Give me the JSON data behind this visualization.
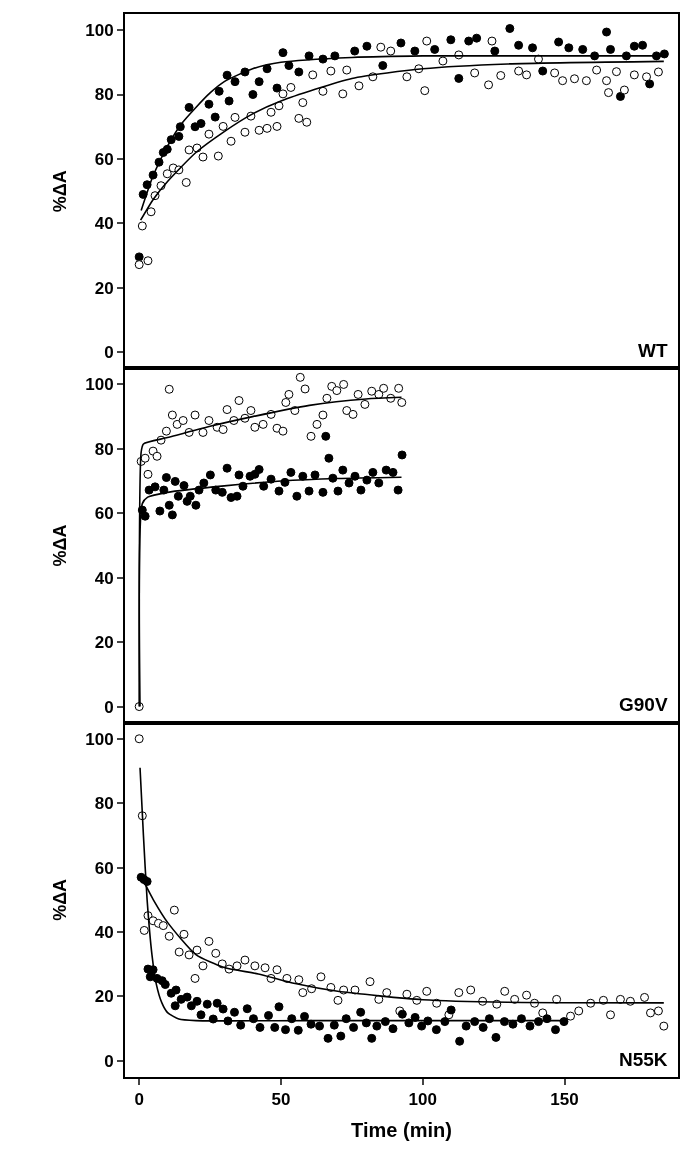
{
  "chart_data": [
    {
      "type": "scatter",
      "ylabel": "%ΔA",
      "annotations": [
        "WT"
      ],
      "xlim": [
        -5,
        190
      ],
      "xticks": [
        0,
        50,
        100,
        150
      ],
      "ylim": [
        -5,
        105
      ],
      "yticks": [
        0,
        20,
        40,
        60,
        80,
        100
      ],
      "tick_labels": "y",
      "grid": false,
      "marker": "circle",
      "series": [
        {
          "color": "#000000",
          "x": [
            0,
            1.4,
            2.8,
            4.9,
            7,
            8.5,
            9.9,
            11.3,
            14,
            14.5,
            17.6,
            19.7,
            21.8,
            24.6,
            26.8,
            28.2,
            31,
            31.7,
            33.8,
            37.3,
            40.1,
            42.3,
            45.1,
            48.6,
            50.7,
            52.8,
            56.3,
            59.9,
            64.8,
            69,
            76,
            80.3,
            85.9,
            92.3,
            97.2,
            104.2,
            109.9,
            112.7,
            116.2,
            119,
            125.4,
            130.7,
            133.8,
            138.7,
            142.3,
            147.9,
            151.5,
            156.4,
            160.6,
            164.8,
            166.2,
            169.7,
            171.8,
            174.6,
            177.5,
            180,
            182.4,
            185.2
          ],
          "values": [
            29.6,
            49,
            52,
            55,
            59,
            62,
            63,
            66,
            67,
            70,
            76,
            70,
            71,
            77,
            73,
            81,
            86,
            78,
            84,
            87,
            80,
            84,
            88,
            82,
            93,
            89,
            87,
            92,
            91,
            92,
            93.5,
            95,
            89,
            96,
            93.5,
            94,
            97,
            85,
            96.6,
            97.5,
            93.5,
            100.5,
            95.3,
            94.5,
            87.3,
            96.3,
            94.5,
            94,
            92,
            99.4,
            94,
            79.4,
            92,
            95,
            95.3,
            83.3,
            92,
            92.6
          ]
        },
        {
          "color": "#ffffff",
          "x": [
            0,
            1.1,
            3.1,
            4.2,
            5.6,
            7.7,
            9.9,
            12,
            14,
            16.6,
            17.6,
            20.4,
            22.5,
            24.6,
            27.9,
            29.6,
            32.4,
            33.8,
            37.3,
            39.4,
            42.3,
            45.1,
            46.5,
            48.6,
            49.3,
            50.7,
            53.5,
            56.3,
            57.7,
            59.1,
            61.2,
            64.8,
            67.6,
            71.8,
            73.2,
            77.5,
            82.4,
            85.2,
            88.7,
            94.4,
            98.6,
            100.7,
            101.4,
            107.1,
            112.7,
            118.3,
            123.2,
            124.4,
            127.5,
            133.8,
            136.6,
            140.8,
            146.5,
            149.3,
            153.5,
            157.7,
            161.3,
            164.8,
            165.5,
            168.3,
            171.1,
            174.6,
            178.9,
            183.1
          ],
          "values": [
            27.2,
            39.2,
            28.4,
            43.6,
            48.6,
            51.7,
            55.4,
            57.2,
            56.6,
            52.7,
            62.8,
            63.4,
            60.6,
            67.7,
            60.9,
            70.1,
            65.5,
            72.9,
            68.3,
            73.3,
            68.9,
            69.5,
            74.5,
            70.1,
            76.5,
            80.2,
            82.2,
            72.6,
            77.5,
            71.4,
            86.1,
            81,
            87.3,
            80.2,
            87.6,
            82.7,
            85.5,
            94.7,
            93.5,
            85.5,
            88,
            81.2,
            96.6,
            90.4,
            92.3,
            86.7,
            83,
            96.6,
            85.9,
            87.3,
            86.1,
            91,
            86.7,
            84.3,
            84.9,
            84.3,
            87.6,
            84.3,
            80.6,
            87.1,
            81.4,
            86.1,
            85.5,
            87
          ]
        },
        {
          "type": "line",
          "marker": "none",
          "color": "#000000",
          "x": [
            0.7,
            5,
            10,
            15,
            20,
            25,
            30,
            40,
            50,
            75,
            100,
            185
          ],
          "values": [
            44,
            55,
            64,
            71,
            76,
            80.5,
            84,
            88,
            90,
            91.5,
            92,
            92
          ]
        },
        {
          "type": "line",
          "marker": "none",
          "color": "#000000",
          "x": [
            0.5,
            5,
            10,
            20,
            30,
            40,
            50,
            75,
            100,
            130,
            185
          ],
          "values": [
            41,
            47.5,
            53,
            62,
            68.5,
            74,
            78,
            85,
            88,
            89.5,
            90.3
          ]
        }
      ]
    },
    {
      "type": "scatter",
      "ylabel": "%ΔA",
      "annotations": [
        "G90V"
      ],
      "xlim": [
        -5,
        190
      ],
      "xticks": [
        0,
        50,
        100,
        150
      ],
      "ylim": [
        -5,
        105
      ],
      "yticks": [
        0,
        20,
        40,
        60,
        80,
        100
      ],
      "tick_labels": "y",
      "grid": false,
      "marker": "circle",
      "series": [
        {
          "color": "#ffffff",
          "x": [
            0,
            0.7,
            2.1,
            3.1,
            4.9,
            6.3,
            7.7,
            9.6,
            10.6,
            11.7,
            13.4,
            15.5,
            17.6,
            19.7,
            22.5,
            24.6,
            27.5,
            29.6,
            31,
            33.4,
            35.2,
            37.3,
            39.4,
            40.8,
            43.7,
            46.5,
            48.6,
            50.7,
            51.7,
            52.8,
            54.9,
            56.8,
            58.5,
            60.6,
            62.7,
            64.8,
            66.2,
            67.9,
            69.7,
            72.1,
            73.2,
            75.4,
            77.2,
            79.6,
            82,
            84.5,
            86.2,
            88.7,
            91.5,
            92.6
          ],
          "values": [
            0,
            76.1,
            77.1,
            72.1,
            79.3,
            77.7,
            82.7,
            85.5,
            98.5,
            90.5,
            87.6,
            88.8,
            85.1,
            90.5,
            85.1,
            88.8,
            86.7,
            86,
            92.2,
            88.8,
            95,
            89.5,
            91.9,
            86.7,
            87.6,
            90.7,
            86.4,
            85.5,
            94.4,
            96.9,
            91.9,
            102.2,
            98.6,
            83.9,
            87.6,
            90.5,
            95.7,
            99.4,
            98.1,
            100,
            91.9,
            90.7,
            96.9,
            93.8,
            97.9,
            96.9,
            98.8,
            95.7,
            98.8,
            94.4
          ]
        },
        {
          "color": "#000000",
          "x": [
            1.1,
            2.1,
            3.5,
            5.6,
            7.3,
            8.7,
            9.6,
            10.6,
            11.7,
            12.7,
            13.8,
            15.8,
            16.9,
            18,
            20,
            21.1,
            22.8,
            25.1,
            27,
            29.3,
            31,
            32.4,
            34.5,
            35.2,
            36.6,
            39.1,
            40.8,
            42.3,
            43.9,
            46.5,
            49.3,
            51.4,
            53.5,
            55.6,
            57.7,
            59.9,
            62,
            64.8,
            65.8,
            66.9,
            68.3,
            70.1,
            71.8,
            74,
            76.1,
            78.2,
            80.3,
            82.4,
            84.5,
            87.1,
            89.5,
            91.3,
            92.7
          ],
          "values": [
            61,
            59.1,
            67.2,
            68.2,
            60.7,
            67.2,
            71.1,
            62.5,
            59.5,
            69.9,
            65.3,
            68.6,
            63.7,
            65.3,
            62.5,
            67.2,
            69.4,
            71.9,
            67.2,
            66.5,
            74,
            64.9,
            65.3,
            71.9,
            68.4,
            71.5,
            72.1,
            73.6,
            68.4,
            70.6,
            66.9,
            69.6,
            72.7,
            65.3,
            71.5,
            66.9,
            71.9,
            66.5,
            83.9,
            77.1,
            70.9,
            66.9,
            73.4,
            69.4,
            71.5,
            67.2,
            70.3,
            72.7,
            69.4,
            73.4,
            72.7,
            67.2,
            78.1
          ]
        },
        {
          "type": "line",
          "marker": "none",
          "color": "#000000",
          "x": [
            0,
            0.7,
            1.5,
            10,
            25,
            40,
            60,
            80,
            92.5
          ],
          "values": [
            0,
            79,
            81.5,
            83.5,
            87,
            90,
            93.5,
            95.5,
            96
          ]
        },
        {
          "type": "line",
          "marker": "none",
          "color": "#000000",
          "x": [
            0.3,
            1.1,
            3,
            10,
            30,
            50,
            70,
            92.5
          ],
          "values": [
            0,
            63,
            65,
            66.5,
            68.5,
            70,
            70.8,
            71.2
          ]
        }
      ]
    },
    {
      "type": "scatter",
      "ylabel": "%ΔA",
      "xlabel": "Time (min)",
      "annotations": [
        "N55K"
      ],
      "xlim": [
        -5,
        190
      ],
      "xticks": [
        0,
        50,
        100,
        150
      ],
      "ylim": [
        -5,
        105
      ],
      "yticks": [
        0,
        20,
        40,
        60,
        80,
        100
      ],
      "grid": false,
      "marker": "circle",
      "series": [
        {
          "color": "#ffffff",
          "x": [
            0,
            1.1,
            1.8,
            3.1,
            4.9,
            6.8,
            8.5,
            10.6,
            12.4,
            14.1,
            15.8,
            17.6,
            19.7,
            20.4,
            22.5,
            24.6,
            27,
            29.3,
            31.7,
            34.5,
            37.3,
            40.8,
            44.4,
            46.5,
            48.6,
            52.1,
            56.3,
            57.7,
            60.8,
            64.1,
            67.6,
            70.1,
            72.1,
            76.1,
            81.4,
            84.5,
            87.3,
            91.9,
            94.4,
            97.9,
            101.4,
            104.9,
            109.2,
            112.7,
            116.9,
            121.1,
            126.1,
            128.9,
            132.4,
            136.6,
            139.4,
            142.3,
            147.2,
            152.1,
            155,
            159.2,
            163.7,
            166.2,
            169.7,
            173.2,
            178.2,
            180.3,
            183.1,
            185
          ],
          "values": [
            100,
            76.1,
            40.5,
            45.1,
            43.5,
            42.7,
            42,
            38.7,
            46.8,
            33.8,
            39.3,
            32.9,
            25.6,
            34.4,
            29.5,
            37.1,
            33.4,
            30.1,
            28.5,
            29.5,
            31.3,
            29.5,
            28.9,
            25.6,
            28.3,
            25.6,
            25.2,
            21.2,
            22.4,
            26.1,
            22.8,
            18.8,
            22,
            22,
            24.6,
            19.1,
            21.2,
            15.5,
            20.7,
            18.8,
            21.6,
            17.9,
            14.3,
            21.2,
            22,
            18.5,
            17.6,
            21.6,
            19.1,
            20.4,
            17.9,
            14.9,
            19.1,
            13.9,
            15.5,
            17.9,
            18.8,
            14.3,
            19.1,
            18.5,
            19.7,
            14.9,
            15.5,
            10.8
          ]
        },
        {
          "color": "#000000",
          "x": [
            0.7,
            1.7,
            2.8,
            3.1,
            3.9,
            4.9,
            6.3,
            8.1,
            9.2,
            11.3,
            12.7,
            13,
            14.8,
            16.9,
            18.4,
            20.4,
            21.8,
            24,
            26.1,
            27.5,
            29.6,
            31.3,
            33.6,
            35.8,
            38.1,
            40.3,
            42.6,
            45.6,
            47.8,
            49.3,
            51.6,
            53.8,
            56.1,
            58.3,
            60.6,
            63.6,
            66.6,
            68.8,
            71.1,
            73,
            75.6,
            78.1,
            80.1,
            82,
            83.8,
            86.8,
            89.5,
            92.8,
            95.1,
            97.3,
            99.6,
            101.8,
            104.8,
            107.8,
            110,
            113,
            115.3,
            118.3,
            121.3,
            123.5,
            125.8,
            128.8,
            131.8,
            134.8,
            137.8,
            140.8,
            143.8,
            146.8,
            149.8
          ],
          "values": [
            57,
            56.3,
            55.7,
            28.5,
            26.1,
            28.3,
            25.6,
            24.9,
            23.7,
            21,
            17.1,
            22,
            19.1,
            19.8,
            17.1,
            18.5,
            14.3,
            17.6,
            13,
            17.9,
            16.1,
            12.4,
            15.1,
            11.1,
            16.2,
            13.1,
            10.4,
            14.1,
            10.4,
            16.8,
            9.7,
            13.1,
            9.5,
            13.8,
            11.4,
            10.8,
            7,
            11.1,
            7.7,
            13.1,
            10.4,
            15.1,
            11.8,
            7,
            10.8,
            12.2,
            10,
            14.5,
            11.8,
            13.5,
            10.8,
            12.4,
            9.7,
            12.2,
            15.8,
            6.1,
            10.8,
            12.2,
            10.4,
            13.1,
            7.3,
            12.2,
            11.4,
            13.1,
            10.8,
            12.2,
            13.1,
            9.7,
            12.2
          ]
        },
        {
          "type": "line",
          "marker": "none",
          "color": "#000000",
          "x": [
            0.3,
            1.5,
            2.8,
            4.5,
            6,
            8,
            10,
            14,
            20,
            60,
            150
          ],
          "values": [
            91,
            70,
            50,
            33,
            24,
            18,
            15,
            13,
            12.5,
            12.5,
            12.5
          ]
        },
        {
          "type": "line",
          "marker": "none",
          "color": "#000000",
          "x": [
            2,
            5,
            10,
            20,
            30,
            42,
            55,
            70,
            100,
            130,
            185
          ],
          "values": [
            55,
            50,
            43,
            33,
            29,
            27,
            24,
            21.6,
            19,
            18.2,
            18
          ]
        }
      ]
    }
  ]
}
